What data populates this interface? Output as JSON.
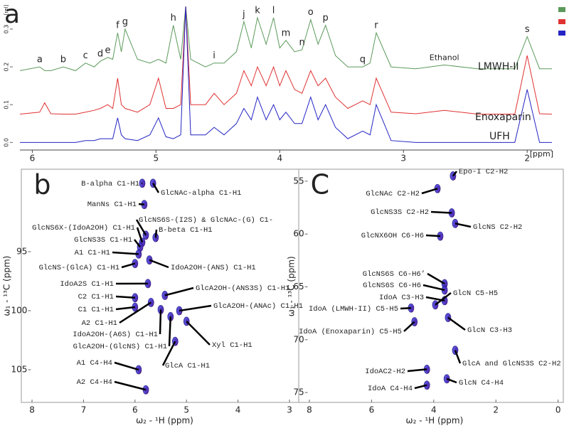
{
  "chart_data": [
    {
      "type": "line",
      "label": "a",
      "xlabel": "[ppm]",
      "ylabel": "[rel]",
      "xlim": [
        6.1,
        1.8
      ],
      "xticks": [
        6,
        5,
        4,
        3,
        2
      ],
      "ylim": [
        -0.02,
        0.36
      ],
      "yticks": [
        {
          "value": 0,
          "label": "0.0"
        },
        0.1,
        0.2,
        0.3
      ],
      "x": [
        6.1,
        5.94,
        5.9,
        5.85,
        5.75,
        5.65,
        5.57,
        5.5,
        5.45,
        5.39,
        5.35,
        5.31,
        5.28,
        5.25,
        5.15,
        5.05,
        4.98,
        4.92,
        4.86,
        4.8,
        4.76,
        4.72,
        4.6,
        4.53,
        4.45,
        4.35,
        4.29,
        4.23,
        4.18,
        4.11,
        4.05,
        4.0,
        3.95,
        3.88,
        3.82,
        3.75,
        3.69,
        3.63,
        3.55,
        3.45,
        3.33,
        3.27,
        3.22,
        3.1,
        2.9,
        2.67,
        2.4,
        2.1,
        2.0,
        1.9,
        1.8
      ],
      "series": [
        {
          "name": "LMWH-II",
          "color": "#5b9a5b",
          "values": [
            0.19,
            0.2,
            0.19,
            0.19,
            0.2,
            0.19,
            0.21,
            0.2,
            0.215,
            0.225,
            0.22,
            0.29,
            0.24,
            0.3,
            0.22,
            0.21,
            0.22,
            0.21,
            0.31,
            0.22,
            0.36,
            0.22,
            0.2,
            0.21,
            0.21,
            0.24,
            0.32,
            0.25,
            0.33,
            0.26,
            0.33,
            0.25,
            0.27,
            0.24,
            0.245,
            0.325,
            0.26,
            0.31,
            0.23,
            0.2,
            0.2,
            0.21,
            0.29,
            0.2,
            0.195,
            0.205,
            0.195,
            0.195,
            0.28,
            0.195,
            0.195
          ]
        },
        {
          "name": "Enoxaparin",
          "color": "#e03232",
          "values": [
            0.075,
            0.08,
            0.105,
            0.076,
            0.075,
            0.075,
            0.08,
            0.085,
            0.09,
            0.1,
            0.09,
            0.17,
            0.1,
            0.09,
            0.08,
            0.1,
            0.17,
            0.09,
            0.09,
            0.1,
            0.36,
            0.1,
            0.1,
            0.13,
            0.1,
            0.13,
            0.19,
            0.15,
            0.2,
            0.15,
            0.2,
            0.15,
            0.19,
            0.14,
            0.13,
            0.19,
            0.15,
            0.17,
            0.12,
            0.09,
            0.11,
            0.1,
            0.17,
            0.08,
            0.076,
            0.085,
            0.075,
            0.075,
            0.23,
            0.076,
            0.075
          ]
        },
        {
          "name": "UFH",
          "color": "#2424c4",
          "values": [
            0,
            0,
            0,
            0,
            0,
            0,
            0.005,
            0.005,
            0.01,
            0.01,
            0.01,
            0.065,
            0.02,
            0.01,
            0.005,
            0.02,
            0.065,
            0.015,
            0.01,
            0.02,
            0.36,
            0.02,
            0.02,
            0.04,
            0.02,
            0.05,
            0.09,
            0.06,
            0.12,
            0.06,
            0.1,
            0.06,
            0.08,
            0.05,
            0.05,
            0.12,
            0.06,
            0.1,
            0.04,
            0.01,
            0.03,
            0.02,
            0.1,
            0.005,
            0,
            0,
            0,
            0,
            0.14,
            0,
            0
          ]
        }
      ],
      "annotations": [
        {
          "text": "a",
          "x": 5.94,
          "y": 0.2
        },
        {
          "text": "b",
          "x": 5.75,
          "y": 0.2
        },
        {
          "text": "c",
          "x": 5.57,
          "y": 0.21
        },
        {
          "text": "d",
          "x": 5.45,
          "y": 0.215
        },
        {
          "text": "e",
          "x": 5.39,
          "y": 0.225
        },
        {
          "text": "f",
          "x": 5.31,
          "y": 0.29
        },
        {
          "text": "g",
          "x": 5.25,
          "y": 0.3
        },
        {
          "text": "h",
          "x": 4.86,
          "y": 0.31
        },
        {
          "text": "i",
          "x": 4.53,
          "y": 0.21
        },
        {
          "text": "j",
          "x": 4.29,
          "y": 0.32
        },
        {
          "text": "k",
          "x": 4.18,
          "y": 0.33
        },
        {
          "text": "l",
          "x": 4.05,
          "y": 0.33
        },
        {
          "text": "m",
          "x": 3.95,
          "y": 0.27
        },
        {
          "text": "n",
          "x": 3.82,
          "y": 0.245
        },
        {
          "text": "o",
          "x": 3.75,
          "y": 0.325
        },
        {
          "text": "p",
          "x": 3.63,
          "y": 0.31
        },
        {
          "text": "q",
          "x": 3.33,
          "y": 0.2
        },
        {
          "text": "r",
          "x": 3.22,
          "y": 0.29
        },
        {
          "text": "Ethanol",
          "x": 2.67,
          "y": 0.205
        },
        {
          "text": "s",
          "x": 2.0,
          "y": 0.28
        }
      ]
    },
    {
      "type": "scatter",
      "label": "b",
      "xlabel": "ω₂ - ¹H (ppm)",
      "ylabel": "ω₁ - ¹³C (ppm)",
      "xlim": [
        8.05,
        2.8
      ],
      "xticks": [
        8,
        7,
        6,
        5,
        4,
        3
      ],
      "ylim": [
        88,
        107.8
      ],
      "yticks": [
        95,
        100,
        105
      ],
      "yaxis_inverted": true,
      "color": "#3a2fd0",
      "annotations": [
        {
          "text": "B-alpha C1-H1",
          "x": 5.86,
          "y": 89.2
        },
        {
          "text": "GlcNAc-alpha C1-H1",
          "x": 5.65,
          "y": 89.2
        },
        {
          "text": "ManNs C1-H1",
          "x": 5.82,
          "y": 91.0
        },
        {
          "text": "GlcNS6S-(I2S) & GlcNAc-(G) C1-",
          "x": 5.79,
          "y": 93.6
        },
        {
          "text": "GlcNS6X-(IdoA2OH) C1-H1",
          "x": 5.86,
          "y": 94.2
        },
        {
          "text": "B-beta C1-H1",
          "x": 5.6,
          "y": 93.8
        },
        {
          "text": "GlcNS3S C1-H1",
          "x": 5.9,
          "y": 94.6
        },
        {
          "text": "A1 C1-H1",
          "x": 5.93,
          "y": 95.2
        },
        {
          "text": "GlcNS-(GlcA) C1-H1",
          "x": 6.0,
          "y": 96.0
        },
        {
          "text": "IdoA2OH-(ANS) C1-H1",
          "x": 5.72,
          "y": 95.7
        },
        {
          "text": "IdoA2S C1-H1",
          "x": 5.75,
          "y": 97.7
        },
        {
          "text": "C2 C1-H1",
          "x": 6.0,
          "y": 98.9
        },
        {
          "text": "GlcA2OH-(ANS3S) C1-H1",
          "x": 5.42,
          "y": 98.7
        },
        {
          "text": "C1 C1-H1",
          "x": 6.0,
          "y": 99.7
        },
        {
          "text": "GlcA2OH-(ANAc) C1-H1",
          "x": 5.14,
          "y": 100.0
        },
        {
          "text": "A2 C1-H1",
          "x": 5.69,
          "y": 99.3
        },
        {
          "text": "IdoA2OH-(A6S) C1-H1",
          "x": 5.5,
          "y": 99.9
        },
        {
          "text": "GlcA2OH-(GlcNS) C1-H1",
          "x": 5.31,
          "y": 100.5
        },
        {
          "text": "Xyl C1-H1",
          "x": 5.0,
          "y": 100.9
        },
        {
          "text": "GlcA C1-H1",
          "x": 5.22,
          "y": 102.6
        },
        {
          "text": "A1 C4-H4",
          "x": 5.93,
          "y": 105.0
        },
        {
          "text": "A2 C4-H4",
          "x": 5.79,
          "y": 106.7
        }
      ]
    },
    {
      "type": "scatter",
      "label": "C",
      "xlabel": "ω₂ - ¹H (ppm)",
      "ylabel": "ω₁ - ¹³C (ppm)",
      "xlim": [
        8.1,
        -0.15
      ],
      "xticks": [
        8,
        6,
        4,
        2,
        0
      ],
      "ylim": [
        54,
        75.9
      ],
      "yticks": [
        55,
        60,
        65,
        70,
        75
      ],
      "yaxis_inverted": true,
      "color": "#3a2fd0",
      "annotations": [
        {
          "text": "Epo-I C2-H2",
          "x": 3.38,
          "y": 54.5
        },
        {
          "text": "GlcNAc C2-H2",
          "x": 3.88,
          "y": 55.7
        },
        {
          "text": "GlcNS3S C2-H2",
          "x": 3.42,
          "y": 58.0
        },
        {
          "text": "GlcNS C2-H2",
          "x": 3.31,
          "y": 59.0
        },
        {
          "text": "GlcNX6OH C6-H6",
          "x": 3.79,
          "y": 60.2
        },
        {
          "text": "GlcNS6S C6-H6’",
          "x": 3.65,
          "y": 64.7
        },
        {
          "text": "GlcNS6S C6-H6",
          "x": 3.65,
          "y": 65.3
        },
        {
          "text": "IdoA C3-H3",
          "x": 3.65,
          "y": 66.3
        },
        {
          "text": "GlcN C5-H5",
          "x": 3.95,
          "y": 66.7
        },
        {
          "text": "IdoA (LMWH-II) C5-H5",
          "x": 4.73,
          "y": 67.0
        },
        {
          "text": "GlcN C3-H3",
          "x": 3.54,
          "y": 67.9
        },
        {
          "text": "IdoA (Enoxaparin) C5-H5",
          "x": 4.62,
          "y": 68.3
        },
        {
          "text": "GlcA and GlcNS3S C2-H2",
          "x": 3.31,
          "y": 71.0
        },
        {
          "text": "IdoAC2-H2",
          "x": 4.22,
          "y": 72.8
        },
        {
          "text": "IdoA C4-H4",
          "x": 4.22,
          "y": 74.3
        },
        {
          "text": "GlcN C4-H4",
          "x": 3.58,
          "y": 73.7
        }
      ]
    }
  ]
}
